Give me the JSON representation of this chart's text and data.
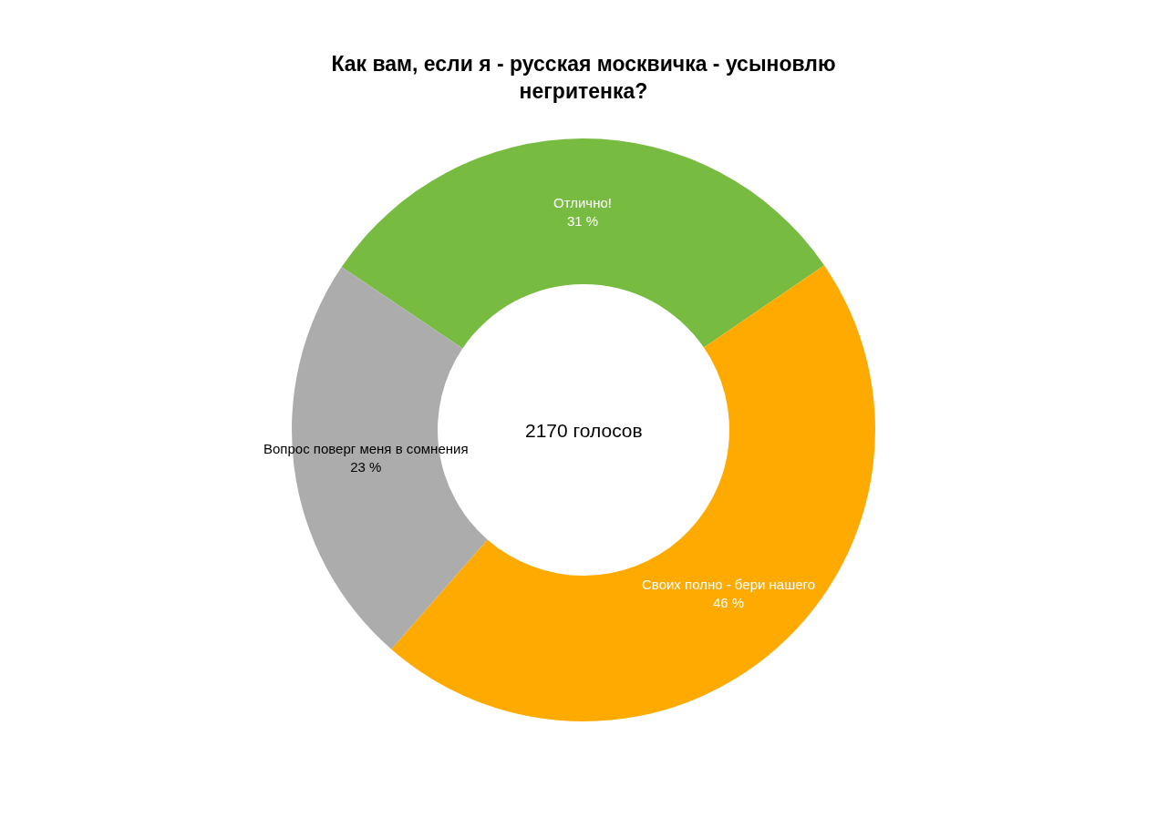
{
  "chart_data": {
    "type": "donut",
    "title": "Как вам, если я - русская москвичка - усыновлю негритенка?",
    "categories": [
      "Отлично!",
      "Своих полно - бери нашего",
      "Вопрос поверг меня в сомнения"
    ],
    "values": [
      31,
      46,
      23
    ],
    "value_labels": [
      "31 %",
      "46 %",
      "23 %"
    ],
    "colors": [
      "#77bb41",
      "#ffaa00",
      "#acacac"
    ],
    "annotations": [
      "2170 голосов"
    ],
    "legend": false
  }
}
